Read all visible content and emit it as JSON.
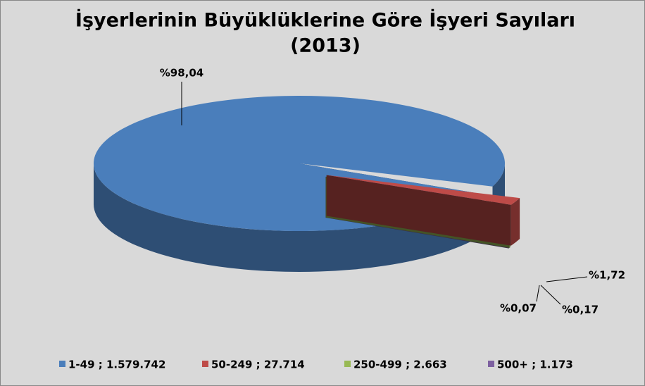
{
  "chart_data": {
    "type": "pie3d",
    "title": [
      "İşyerlerinin Büyüklüklerine Göre İşyeri Sayıları",
      "(2013)"
    ],
    "categories": [
      "1-49 ;  1.579.742",
      "50-249 ; 27.714",
      "250-499 ; 2.663",
      "500+ ; 1.173"
    ],
    "values": [
      98.04,
      1.72,
      0.17,
      0.07
    ],
    "value_labels": [
      "%98,04",
      "%1,72",
      "%0,17",
      "%0,07"
    ],
    "colors": [
      "#4a7ebb",
      "#be4b48",
      "#98b954",
      "#7d60a0"
    ],
    "legend": "bottom"
  }
}
